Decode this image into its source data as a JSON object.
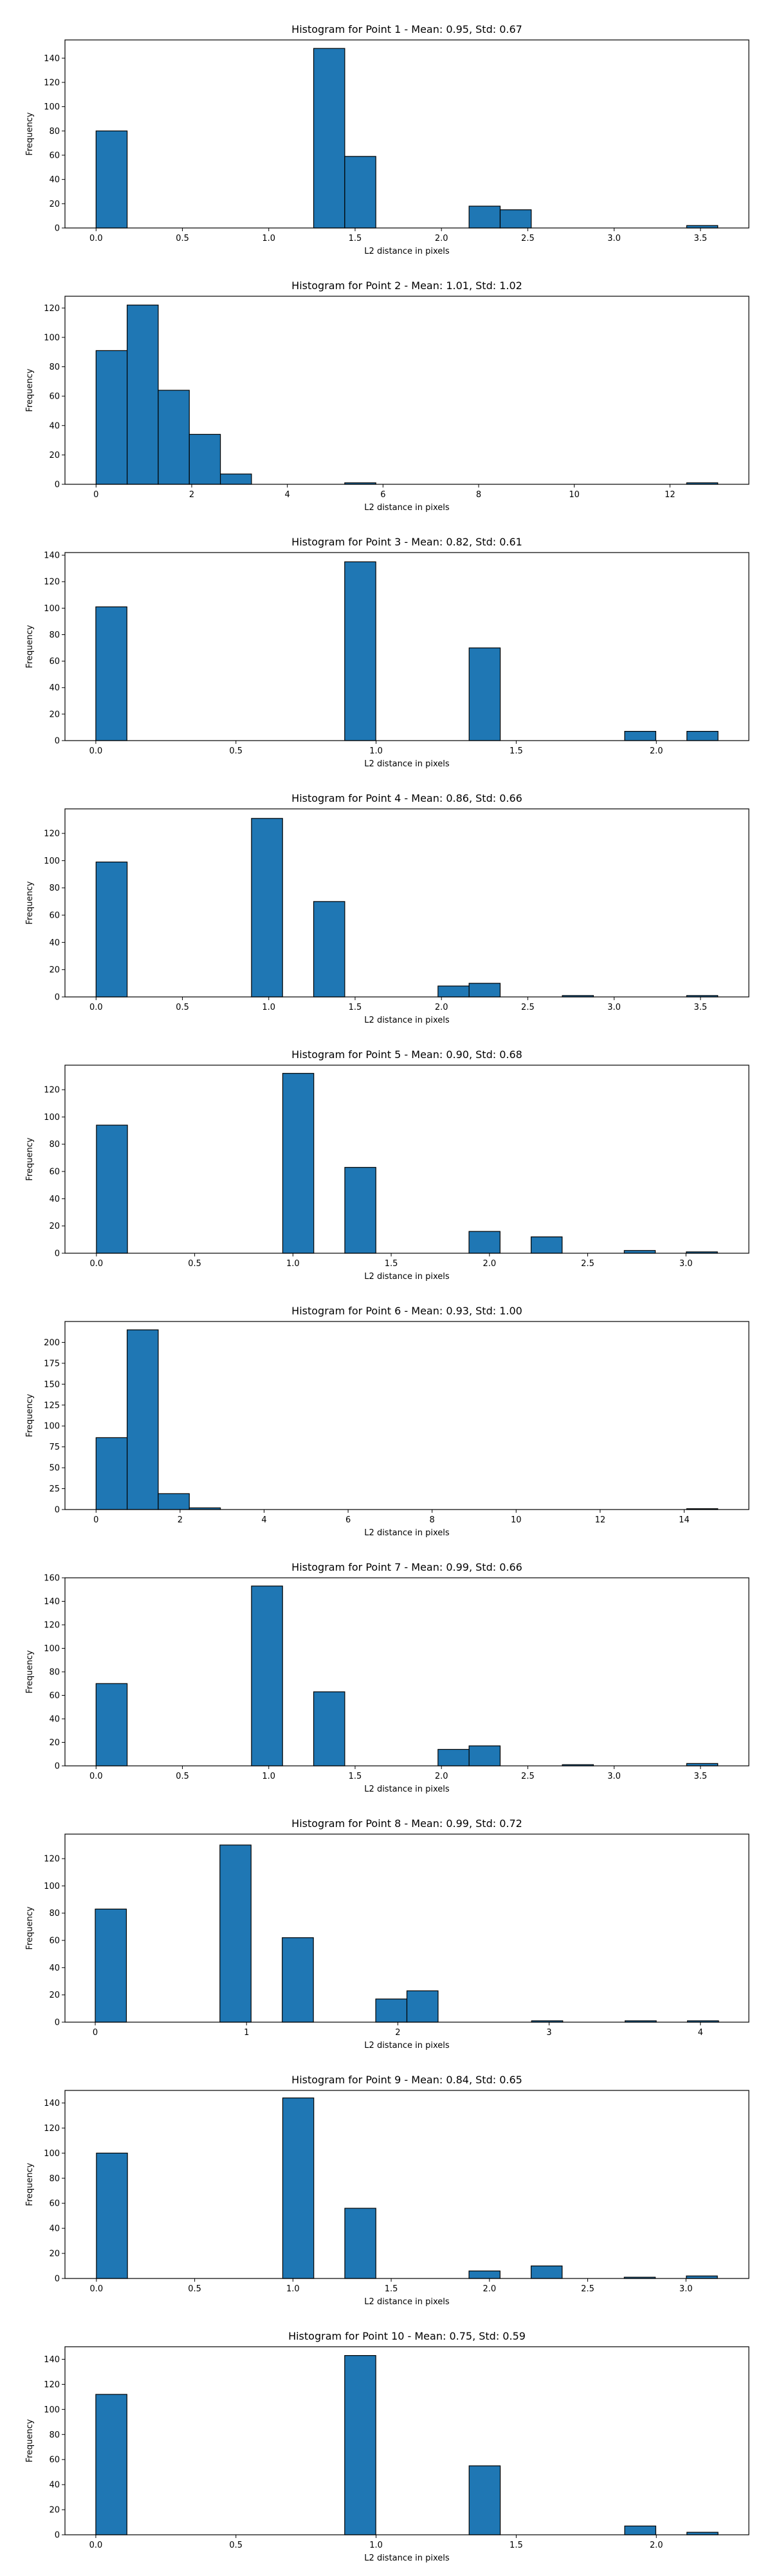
{
  "chart_data": [
    {
      "type": "bar",
      "title": "Histogram for Point 1 - Mean: 0.95, Std: 0.67",
      "xlabel": "L2 distance in pixels",
      "ylabel": "Frequency",
      "xlim": [
        -0.18,
        3.78
      ],
      "ylim": [
        0,
        155
      ],
      "xticks": [
        0.0,
        0.5,
        1.0,
        1.5,
        2.0,
        2.5,
        3.0,
        3.5
      ],
      "xtick_labels": [
        "0.0",
        "0.5",
        "1.0",
        "1.5",
        "2.0",
        "2.5",
        "3.0",
        "3.5"
      ],
      "yticks": [
        0,
        20,
        40,
        60,
        80,
        100,
        120,
        140
      ],
      "bin_width": 0.18,
      "bins": [
        [
          0.0,
          80
        ],
        [
          1.26,
          148
        ],
        [
          1.44,
          59
        ],
        [
          2.16,
          18
        ],
        [
          2.34,
          15
        ],
        [
          3.42,
          2
        ]
      ]
    },
    {
      "type": "bar",
      "title": "Histogram for Point 2 - Mean: 1.01, Std: 1.02",
      "xlabel": "L2 distance in pixels",
      "ylabel": "Frequency",
      "xlim": [
        -0.65,
        13.65
      ],
      "ylim": [
        0,
        128
      ],
      "xticks": [
        0,
        2,
        4,
        6,
        8,
        10,
        12
      ],
      "xtick_labels": [
        "0",
        "2",
        "4",
        "6",
        "8",
        "10",
        "12"
      ],
      "yticks": [
        0,
        20,
        40,
        60,
        80,
        100,
        120
      ],
      "bin_width": 0.65,
      "bins": [
        [
          0.0,
          91
        ],
        [
          0.65,
          122
        ],
        [
          1.3,
          64
        ],
        [
          1.95,
          34
        ],
        [
          2.6,
          7
        ],
        [
          5.2,
          1
        ],
        [
          12.35,
          1
        ]
      ]
    },
    {
      "type": "bar",
      "title": "Histogram for Point 3 - Mean: 0.82, Std: 0.61",
      "xlabel": "L2 distance in pixels",
      "ylabel": "Frequency",
      "xlim": [
        -0.11,
        2.33
      ],
      "ylim": [
        0,
        142
      ],
      "xticks": [
        0.0,
        0.5,
        1.0,
        1.5,
        2.0
      ],
      "xtick_labels": [
        "0.0",
        "0.5",
        "1.0",
        "1.5",
        "2.0"
      ],
      "yticks": [
        0,
        20,
        40,
        60,
        80,
        100,
        120,
        140
      ],
      "bin_width": 0.111,
      "bins": [
        [
          0.0,
          101
        ],
        [
          0.888,
          135
        ],
        [
          1.332,
          70
        ],
        [
          1.887,
          7
        ],
        [
          2.109,
          7
        ]
      ]
    },
    {
      "type": "bar",
      "title": "Histogram for Point 4 - Mean: 0.86, Std: 0.66",
      "xlabel": "L2 distance in pixels",
      "ylabel": "Frequency",
      "xlim": [
        -0.18,
        3.78
      ],
      "ylim": [
        0,
        138
      ],
      "xticks": [
        0.0,
        0.5,
        1.0,
        1.5,
        2.0,
        2.5,
        3.0,
        3.5
      ],
      "xtick_labels": [
        "0.0",
        "0.5",
        "1.0",
        "1.5",
        "2.0",
        "2.5",
        "3.0",
        "3.5"
      ],
      "yticks": [
        0,
        20,
        40,
        60,
        80,
        100,
        120
      ],
      "bin_width": 0.18,
      "bins": [
        [
          0.0,
          99
        ],
        [
          0.9,
          131
        ],
        [
          1.26,
          70
        ],
        [
          1.98,
          8
        ],
        [
          2.16,
          10
        ],
        [
          2.7,
          1
        ],
        [
          3.42,
          1
        ]
      ]
    },
    {
      "type": "bar",
      "title": "Histogram for Point 5 - Mean: 0.90, Std: 0.68",
      "xlabel": "L2 distance in pixels",
      "ylabel": "Frequency",
      "xlim": [
        -0.16,
        3.32
      ],
      "ylim": [
        0,
        138
      ],
      "xticks": [
        0.0,
        0.5,
        1.0,
        1.5,
        2.0,
        2.5,
        3.0
      ],
      "xtick_labels": [
        "0.0",
        "0.5",
        "1.0",
        "1.5",
        "2.0",
        "2.5",
        "3.0"
      ],
      "yticks": [
        0,
        20,
        40,
        60,
        80,
        100,
        120
      ],
      "bin_width": 0.158,
      "bins": [
        [
          0.0,
          94
        ],
        [
          0.948,
          132
        ],
        [
          1.264,
          63
        ],
        [
          1.896,
          16
        ],
        [
          2.212,
          12
        ],
        [
          2.686,
          2
        ],
        [
          3.002,
          1
        ]
      ]
    },
    {
      "type": "bar",
      "title": "Histogram for Point 6 - Mean: 0.93, Std: 1.00",
      "xlabel": "L2 distance in pixels",
      "ylabel": "Frequency",
      "xlim": [
        -0.74,
        15.54
      ],
      "ylim": [
        0,
        225
      ],
      "xticks": [
        0,
        2,
        4,
        6,
        8,
        10,
        12,
        14
      ],
      "xtick_labels": [
        "0",
        "2",
        "4",
        "6",
        "8",
        "10",
        "12",
        "14"
      ],
      "yticks": [
        0,
        25,
        50,
        75,
        100,
        125,
        150,
        175,
        200
      ],
      "bin_width": 0.74,
      "bins": [
        [
          0.0,
          86
        ],
        [
          0.74,
          215
        ],
        [
          1.48,
          19
        ],
        [
          2.22,
          2
        ],
        [
          14.06,
          1
        ]
      ]
    },
    {
      "type": "bar",
      "title": "Histogram for Point 7 - Mean: 0.99, Std: 0.66",
      "xlabel": "L2 distance in pixels",
      "ylabel": "Frequency",
      "xlim": [
        -0.18,
        3.78
      ],
      "ylim": [
        0,
        160
      ],
      "xticks": [
        0.0,
        0.5,
        1.0,
        1.5,
        2.0,
        2.5,
        3.0,
        3.5
      ],
      "xtick_labels": [
        "0.0",
        "0.5",
        "1.0",
        "1.5",
        "2.0",
        "2.5",
        "3.0",
        "3.5"
      ],
      "yticks": [
        0,
        20,
        40,
        60,
        80,
        100,
        120,
        140,
        160
      ],
      "bin_width": 0.18,
      "bins": [
        [
          0.0,
          70
        ],
        [
          0.9,
          153
        ],
        [
          1.26,
          63
        ],
        [
          1.98,
          14
        ],
        [
          2.16,
          17
        ],
        [
          2.7,
          1
        ],
        [
          3.42,
          2
        ]
      ]
    },
    {
      "type": "bar",
      "title": "Histogram for Point 8 - Mean: 0.99, Std: 0.72",
      "xlabel": "L2 distance in pixels",
      "ylabel": "Frequency",
      "xlim": [
        -0.2,
        4.32
      ],
      "ylim": [
        0,
        138
      ],
      "xticks": [
        0,
        1,
        2,
        3,
        4
      ],
      "xtick_labels": [
        "0",
        "1",
        "2",
        "3",
        "4"
      ],
      "yticks": [
        0,
        20,
        40,
        60,
        80,
        100,
        120
      ],
      "bin_width": 0.206,
      "bins": [
        [
          0.0,
          83
        ],
        [
          0.824,
          130
        ],
        [
          1.236,
          62
        ],
        [
          1.854,
          17
        ],
        [
          2.06,
          23
        ],
        [
          2.884,
          1
        ],
        [
          3.502,
          1
        ],
        [
          3.914,
          1
        ]
      ]
    },
    {
      "type": "bar",
      "title": "Histogram for Point 9 - Mean: 0.84, Std: 0.65",
      "xlabel": "L2 distance in pixels",
      "ylabel": "Frequency",
      "xlim": [
        -0.16,
        3.32
      ],
      "ylim": [
        0,
        150
      ],
      "xticks": [
        0.0,
        0.5,
        1.0,
        1.5,
        2.0,
        2.5,
        3.0
      ],
      "xtick_labels": [
        "0.0",
        "0.5",
        "1.0",
        "1.5",
        "2.0",
        "2.5",
        "3.0"
      ],
      "yticks": [
        0,
        20,
        40,
        60,
        80,
        100,
        120,
        140
      ],
      "bin_width": 0.158,
      "bins": [
        [
          0.0,
          100
        ],
        [
          0.948,
          144
        ],
        [
          1.264,
          56
        ],
        [
          1.896,
          6
        ],
        [
          2.212,
          10
        ],
        [
          2.686,
          1
        ],
        [
          3.002,
          2
        ]
      ]
    },
    {
      "type": "bar",
      "title": "Histogram for Point 10 - Mean: 0.75, Std: 0.59",
      "xlabel": "L2 distance in pixels",
      "ylabel": "Frequency",
      "xlim": [
        -0.11,
        2.33
      ],
      "ylim": [
        0,
        150
      ],
      "xticks": [
        0.0,
        0.5,
        1.0,
        1.5,
        2.0
      ],
      "xtick_labels": [
        "0.0",
        "0.5",
        "1.0",
        "1.5",
        "2.0"
      ],
      "yticks": [
        0,
        20,
        40,
        60,
        80,
        100,
        120,
        140
      ],
      "bin_width": 0.111,
      "bins": [
        [
          0.0,
          112
        ],
        [
          0.888,
          143
        ],
        [
          1.332,
          55
        ],
        [
          1.887,
          7
        ],
        [
          2.109,
          2
        ]
      ]
    }
  ]
}
